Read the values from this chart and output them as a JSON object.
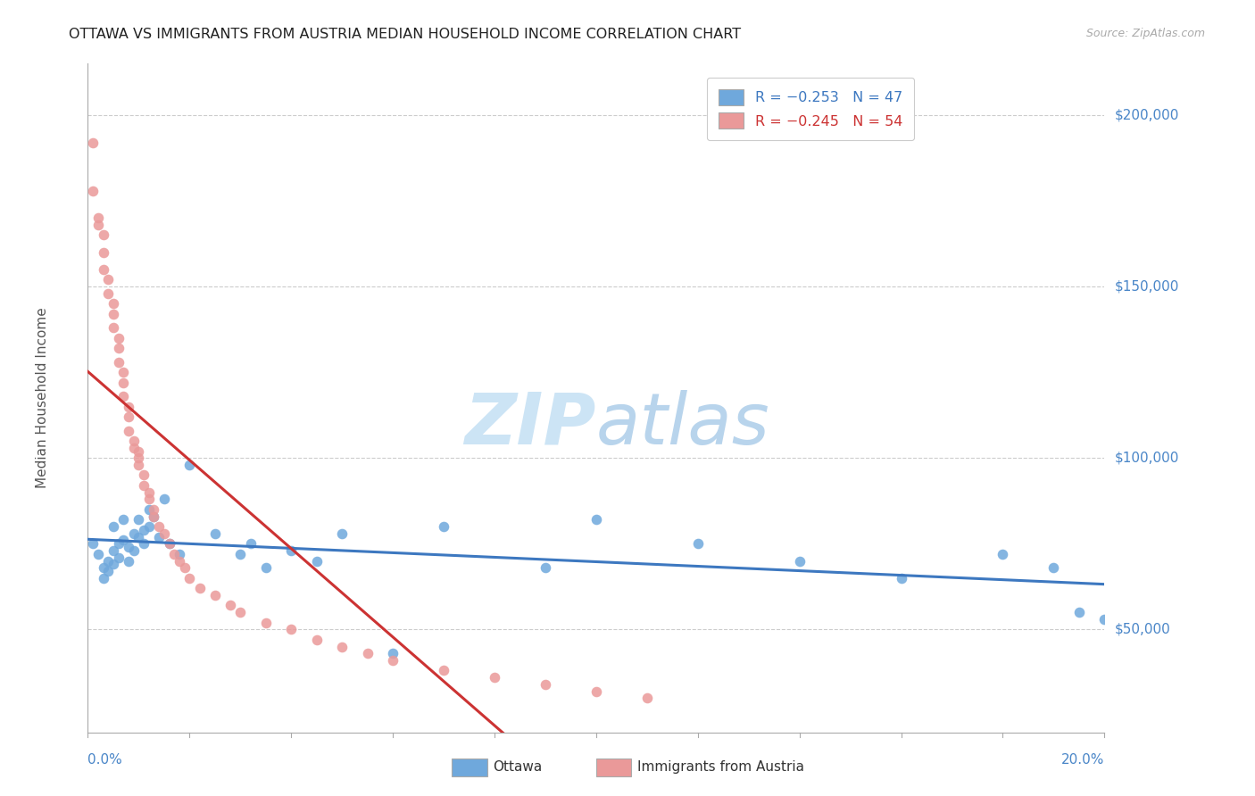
{
  "title": "OTTAWA VS IMMIGRANTS FROM AUSTRIA MEDIAN HOUSEHOLD INCOME CORRELATION CHART",
  "source": "Source: ZipAtlas.com",
  "ylabel": "Median Household Income",
  "ytick_labels": [
    "$50,000",
    "$100,000",
    "$150,000",
    "$200,000"
  ],
  "ytick_values": [
    50000,
    100000,
    150000,
    200000
  ],
  "ymin": 20000,
  "ymax": 215000,
  "xmin": 0.0,
  "xmax": 0.2,
  "legend_ottawa_r": "R = −0.253",
  "legend_ottawa_n": "N = 47",
  "legend_austria_r": "R = −0.245",
  "legend_austria_n": "N = 54",
  "color_ottawa": "#6fa8dc",
  "color_austria": "#ea9999",
  "color_trendline_ottawa": "#3d78c0",
  "color_trendline_austria": "#cc3333",
  "ottawa_x": [
    0.001,
    0.002,
    0.003,
    0.003,
    0.004,
    0.004,
    0.005,
    0.005,
    0.005,
    0.006,
    0.006,
    0.007,
    0.007,
    0.008,
    0.008,
    0.009,
    0.009,
    0.01,
    0.01,
    0.011,
    0.011,
    0.012,
    0.012,
    0.013,
    0.014,
    0.015,
    0.016,
    0.018,
    0.02,
    0.025,
    0.03,
    0.032,
    0.035,
    0.04,
    0.045,
    0.05,
    0.06,
    0.07,
    0.09,
    0.1,
    0.12,
    0.14,
    0.16,
    0.18,
    0.19,
    0.195,
    0.2
  ],
  "ottawa_y": [
    75000,
    72000,
    68000,
    65000,
    70000,
    67000,
    73000,
    69000,
    80000,
    75000,
    71000,
    82000,
    76000,
    74000,
    70000,
    78000,
    73000,
    82000,
    77000,
    79000,
    75000,
    85000,
    80000,
    83000,
    77000,
    88000,
    75000,
    72000,
    98000,
    78000,
    72000,
    75000,
    68000,
    73000,
    70000,
    78000,
    43000,
    80000,
    68000,
    82000,
    75000,
    70000,
    65000,
    72000,
    68000,
    55000,
    53000
  ],
  "austria_x": [
    0.001,
    0.001,
    0.002,
    0.002,
    0.003,
    0.003,
    0.003,
    0.004,
    0.004,
    0.005,
    0.005,
    0.005,
    0.006,
    0.006,
    0.006,
    0.007,
    0.007,
    0.007,
    0.008,
    0.008,
    0.008,
    0.009,
    0.009,
    0.01,
    0.01,
    0.01,
    0.011,
    0.011,
    0.012,
    0.012,
    0.013,
    0.013,
    0.014,
    0.015,
    0.016,
    0.017,
    0.018,
    0.019,
    0.02,
    0.022,
    0.025,
    0.028,
    0.03,
    0.035,
    0.04,
    0.045,
    0.05,
    0.055,
    0.06,
    0.07,
    0.08,
    0.09,
    0.1,
    0.11
  ],
  "austria_y": [
    192000,
    178000,
    170000,
    168000,
    165000,
    160000,
    155000,
    152000,
    148000,
    145000,
    142000,
    138000,
    135000,
    132000,
    128000,
    125000,
    122000,
    118000,
    115000,
    112000,
    108000,
    105000,
    103000,
    100000,
    98000,
    102000,
    95000,
    92000,
    90000,
    88000,
    85000,
    83000,
    80000,
    78000,
    75000,
    72000,
    70000,
    68000,
    65000,
    62000,
    60000,
    57000,
    55000,
    52000,
    50000,
    47000,
    45000,
    43000,
    41000,
    38000,
    36000,
    34000,
    32000,
    30000
  ],
  "trendline_austria_solid_end": 0.13,
  "trendline_austria_dash_end": 0.2,
  "trendline_ottawa_start": 0.0,
  "trendline_ottawa_end": 0.2
}
